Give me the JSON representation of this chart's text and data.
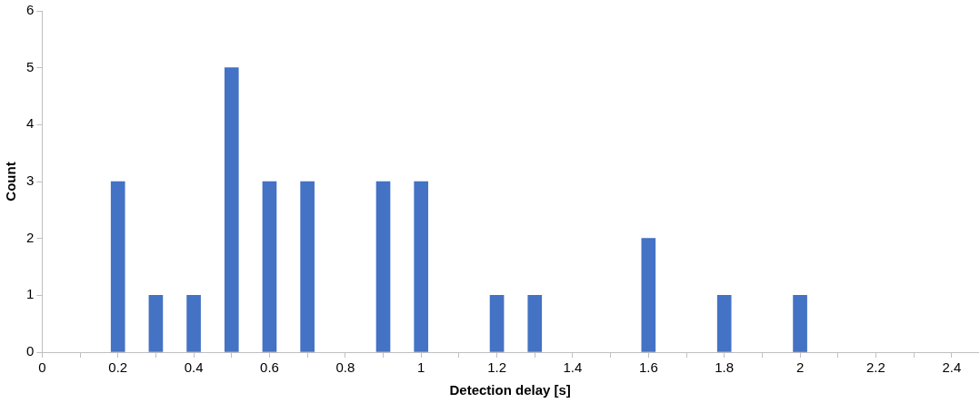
{
  "chart_data": {
    "type": "bar",
    "xlabel": "Detection delay [s]",
    "ylabel": "Count",
    "x": [
      0.2,
      0.3,
      0.4,
      0.5,
      0.6,
      0.7,
      0.9,
      1.0,
      1.2,
      1.3,
      1.6,
      1.8,
      2.0
    ],
    "values": [
      3,
      1,
      1,
      5,
      3,
      3,
      3,
      3,
      1,
      1,
      2,
      1,
      1
    ],
    "color": "#4472c4",
    "xlim": [
      0,
      2.47
    ],
    "xticks": [
      0,
      {
        "value": 0.1,
        "label": null
      },
      0.2,
      {
        "value": 0.3,
        "label": null
      },
      0.4,
      {
        "value": 0.5,
        "label": null
      },
      0.6,
      {
        "value": 0.7,
        "label": null
      },
      0.8,
      {
        "value": 0.9,
        "label": null
      },
      1,
      {
        "value": 1.1,
        "label": null
      },
      1.2,
      {
        "value": 1.3,
        "label": null
      },
      1.4,
      {
        "value": 1.5,
        "label": null
      },
      1.6,
      {
        "value": 1.7,
        "label": null
      },
      1.8,
      {
        "value": 1.9,
        "label": null
      },
      2,
      {
        "value": 2.1,
        "label": null
      },
      2.2,
      {
        "value": 2.3,
        "label": null
      },
      2.4
    ],
    "ylim": [
      0,
      6
    ],
    "yticks": [
      0,
      1,
      2,
      3,
      4,
      5,
      6
    ],
    "grid": false,
    "legend": false
  }
}
